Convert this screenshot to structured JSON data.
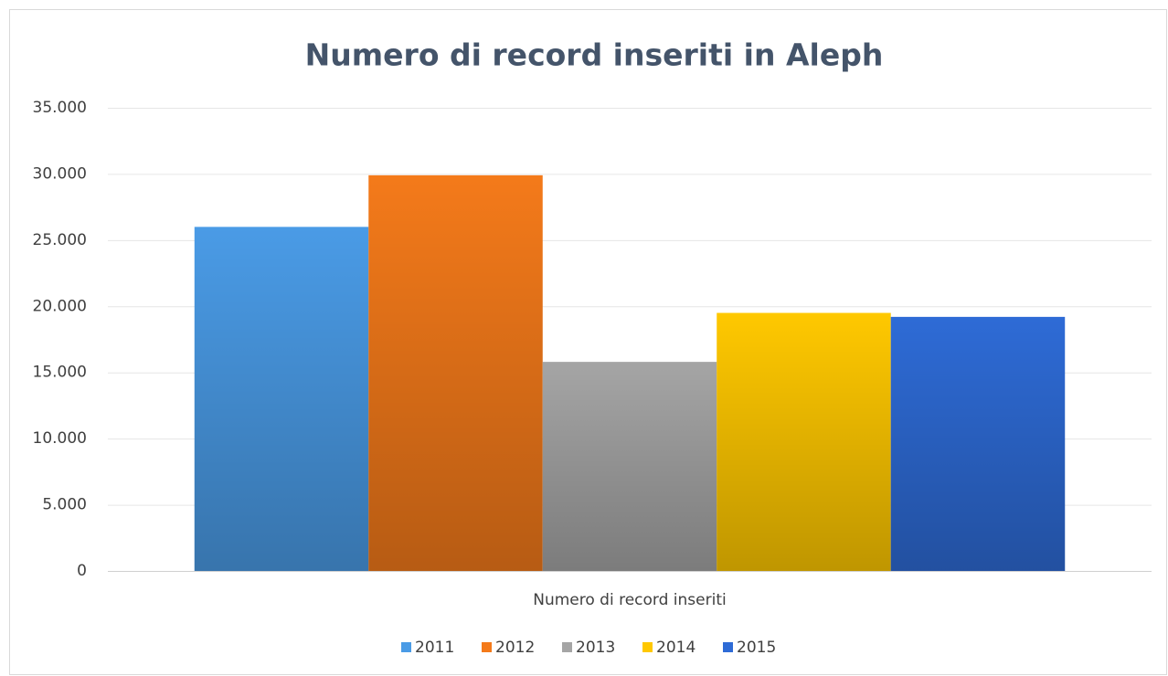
{
  "chart_data": {
    "type": "bar",
    "title": "Numero di record inseriti in Aleph",
    "categories": [
      "Numero di record inseriti"
    ],
    "series": [
      {
        "name": "2011",
        "color": "#4a9be6",
        "values": [
          26000
        ]
      },
      {
        "name": "2012",
        "color": "#f47a1a",
        "values": [
          29900
        ]
      },
      {
        "name": "2013",
        "color": "#a5a5a5",
        "values": [
          15800
        ]
      },
      {
        "name": "2014",
        "color": "#ffc800",
        "values": [
          19500
        ]
      },
      {
        "name": "2015",
        "color": "#2e6bd6",
        "values": [
          19200
        ]
      }
    ],
    "ylim": [
      0,
      35000
    ],
    "yticks": [
      0,
      {
        "value": 5000,
        "label": "5.000"
      },
      {
        "value": 10000,
        "label": "10.000"
      },
      {
        "value": 15000,
        "label": "15.000"
      },
      {
        "value": 20000,
        "label": "20.000"
      },
      {
        "value": 25000,
        "label": "25.000"
      },
      {
        "value": 30000,
        "label": "30.000"
      },
      {
        "value": 35000,
        "label": "35.000"
      }
    ],
    "grid": true,
    "legend": "bottom"
  }
}
